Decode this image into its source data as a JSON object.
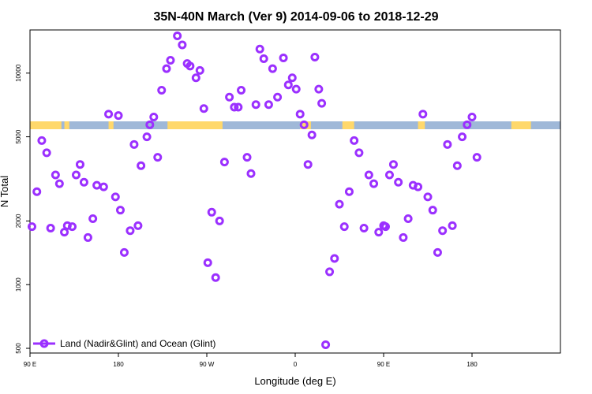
{
  "chart_data": {
    "type": "scatter",
    "title": "35N-40N March (Ver 9)   2014-09-06 to 2018-12-29",
    "xlabel": "Longitude (deg E)",
    "ylabel": "N Total",
    "y_scale": "log",
    "x_categories": [
      "90 E",
      "180",
      "90 W",
      "0",
      "90 E",
      "180"
    ],
    "y_ticks": [
      500,
      1000,
      2000,
      5000,
      10000
    ],
    "y_tick_labels": [
      "500",
      "1000",
      "2000",
      "5000",
      "10000"
    ],
    "ylim": [
      475,
      16000
    ],
    "series": [
      {
        "name": "Land (Nadir&Glint) and Ocean (Glint)",
        "color": "#9b30ff",
        "x": [
          92,
          97,
          102,
          107,
          111,
          116,
          120,
          125,
          128,
          133,
          137,
          141,
          145,
          149,
          154,
          158,
          165,
          170,
          177,
          180,
          182,
          186,
          192,
          196,
          200,
          203,
          209,
          212,
          216,
          220,
          224,
          229,
          233,
          240,
          245,
          250,
          253,
          259,
          263,
          267,
          271,
          275,
          279,
          283,
          288,
          293,
          298,
          302,
          305,
          311,
          315,
          320,
          324,
          328,
          333,
          337,
          342,
          348,
          353,
          357,
          361,
          365,
          369,
          373,
          377,
          380,
          384,
          387,
          391,
          395,
          400,
          405,
          410,
          415,
          420,
          425,
          430,
          435,
          440,
          445,
          450,
          452,
          456,
          460,
          465,
          470,
          475,
          480,
          485,
          490,
          495,
          500,
          505,
          510,
          515,
          520,
          525,
          530,
          535,
          540,
          545
        ],
        "y": [
          1880,
          2750,
          4800,
          4200,
          1850,
          3300,
          3000,
          1770,
          1900,
          1880,
          3300,
          3700,
          3050,
          1670,
          2050,
          2950,
          2900,
          6400,
          2600,
          6300,
          2250,
          1420,
          1800,
          4600,
          1900,
          3650,
          5000,
          5700,
          6200,
          4000,
          8300,
          10500,
          11500,
          15000,
          13600,
          11100,
          10800,
          9500,
          10300,
          6800,
          1270,
          2200,
          1080,
          2000,
          3800,
          7700,
          6900,
          6900,
          8300,
          4000,
          3350,
          7100,
          13000,
          11700,
          7100,
          10500,
          7700,
          11800,
          8800,
          9500,
          8400,
          6400,
          5700,
          3700,
          5100,
          11900,
          8400,
          7200,
          520,
          1150,
          1330,
          2400,
          1880,
          2750,
          4800,
          4200,
          1850,
          3300,
          3000,
          1770,
          1900,
          1880,
          3300,
          3700,
          3050,
          1670,
          2050,
          2950,
          2900,
          6400,
          2600,
          2250,
          1420,
          1800,
          4600,
          1900,
          3650,
          5000,
          5700,
          6200,
          4000
        ],
        "marker": "circle"
      }
    ],
    "legend": {
      "position": "bottom-left",
      "entries": [
        "Land (Nadir&Glint) and Ocean (Glint)"
      ]
    },
    "surface_band": {
      "colors": {
        "ocean": "#9fb8d8",
        "land": "#ffd86b"
      },
      "land_segments_deg_east": [
        [
          90,
          122
        ],
        [
          125,
          130
        ],
        [
          170,
          175
        ],
        [
          230,
          286
        ],
        [
          365,
          376
        ],
        [
          408,
          420
        ],
        [
          485,
          492
        ],
        [
          580,
          600
        ]
      ]
    },
    "grid": false
  }
}
